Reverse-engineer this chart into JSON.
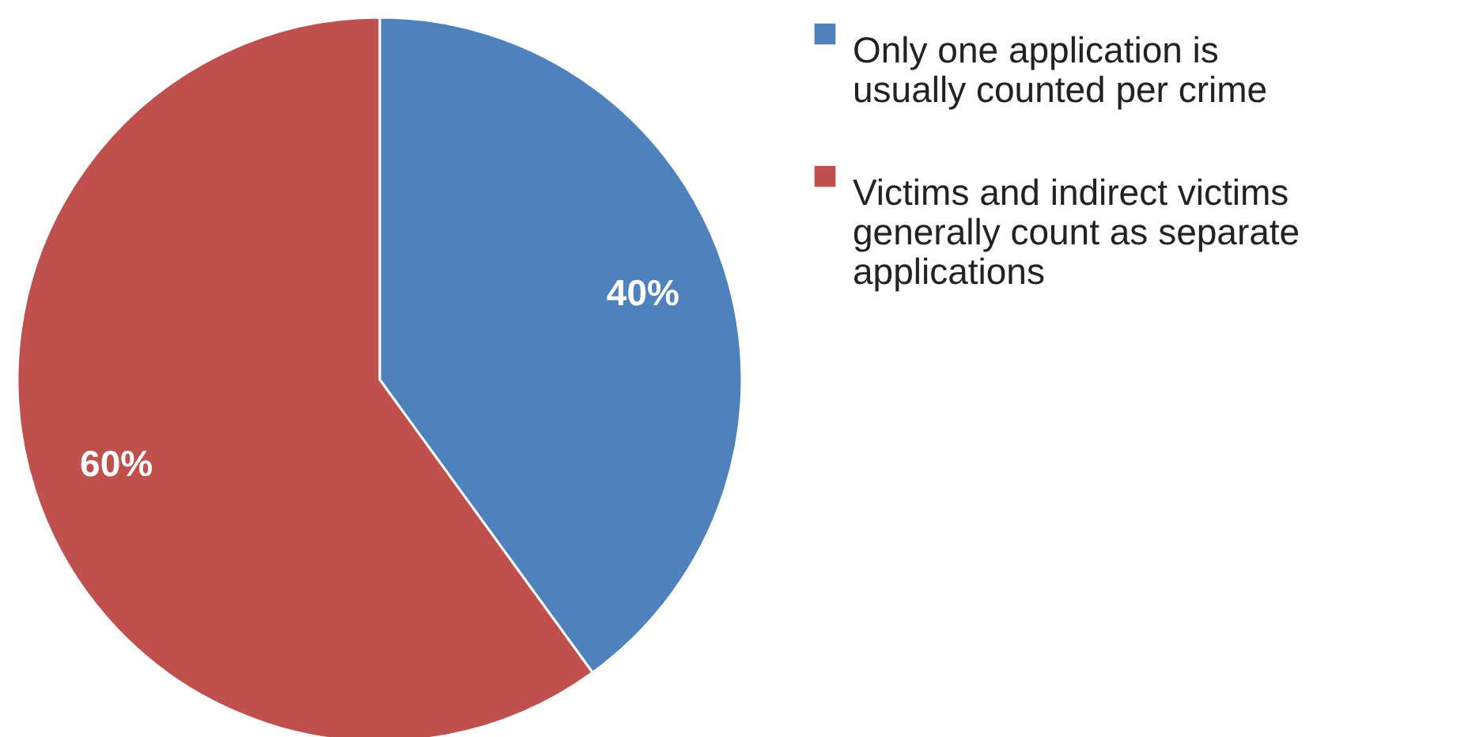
{
  "chart_data": {
    "type": "pie",
    "categories": [
      "Only one application is usually counted per crime",
      "Victims and indirect victims generally count as separate applications"
    ],
    "values": [
      40,
      60
    ],
    "colors": [
      "#4f81bd",
      "#c0504d"
    ],
    "value_labels": [
      "40%",
      "60%"
    ],
    "legend": "right"
  }
}
